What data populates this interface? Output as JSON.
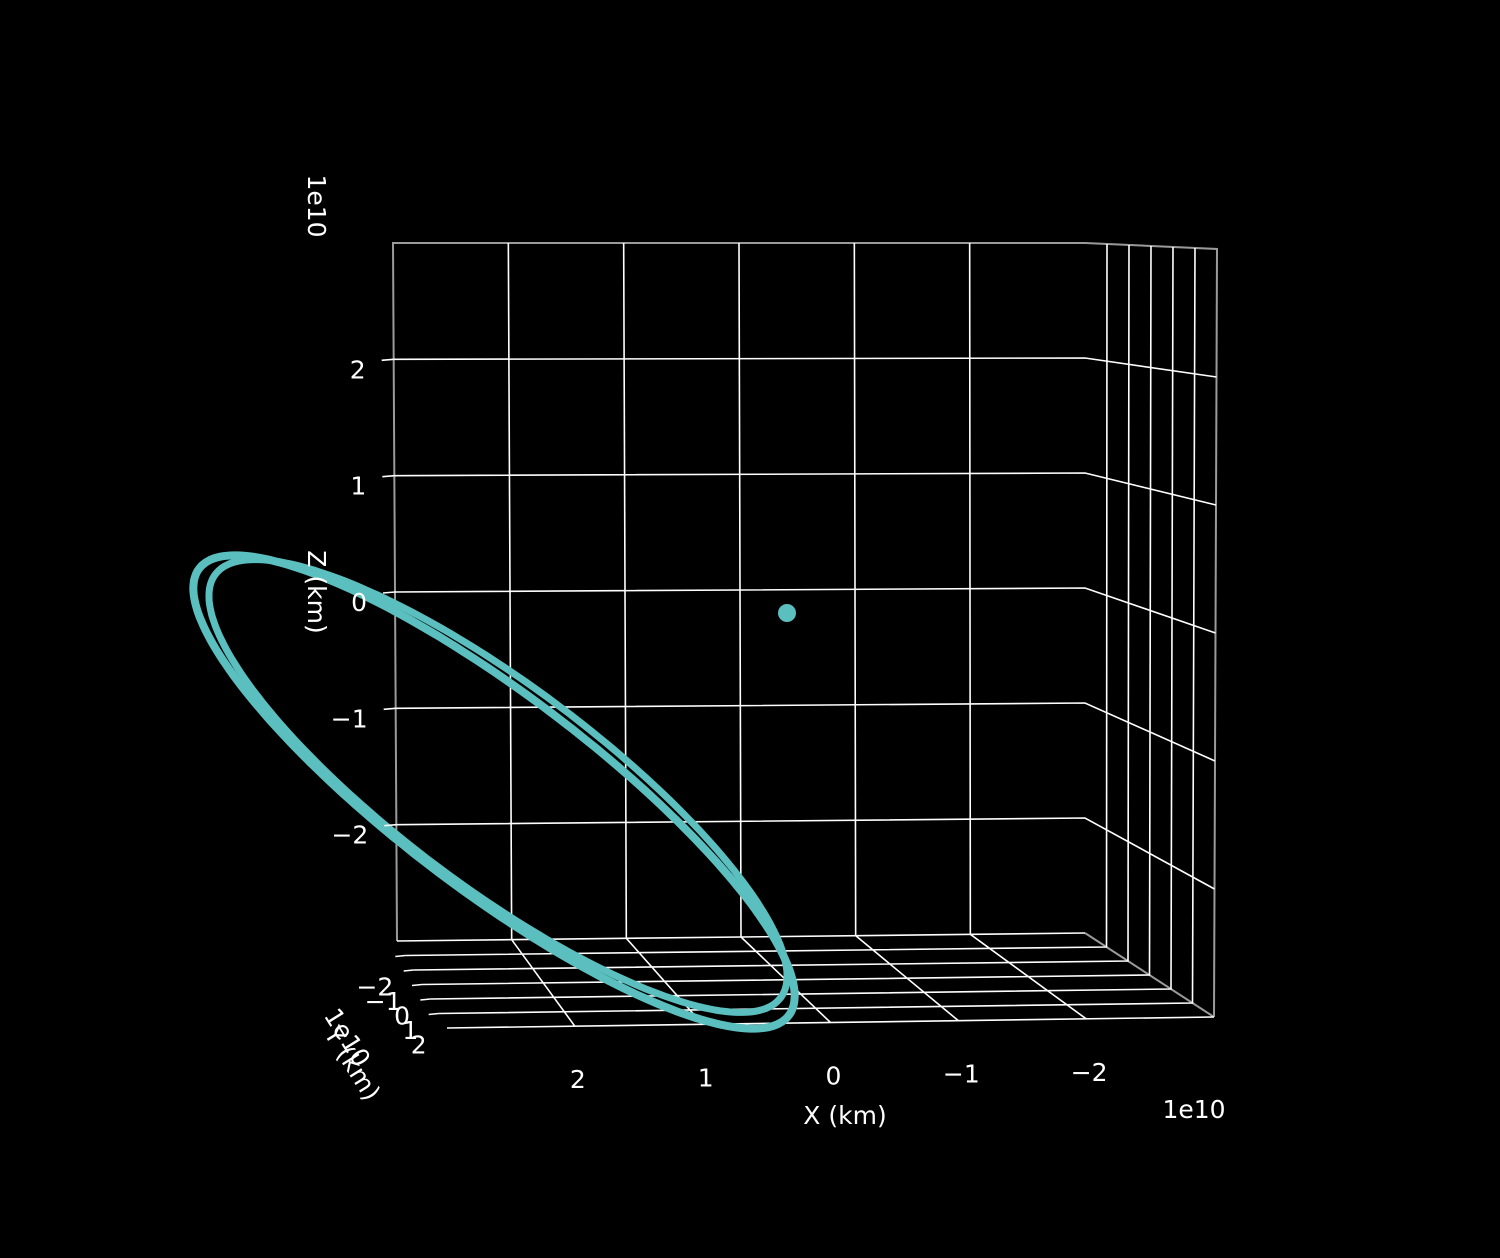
{
  "colors": {
    "background": "#000000",
    "grid": "#ffffff",
    "pane_edge": "#9a9a9a",
    "orbit": "#5bbfbf",
    "text": "#ffffff"
  },
  "chart_data": {
    "type": "line",
    "projection": "3d",
    "title": "",
    "xlabel": "X (km)",
    "ylabel": "Y (km)",
    "zlabel": "Z (km)",
    "offsets": {
      "x": "1e10",
      "y": "1e10",
      "z": "1e10"
    },
    "xlim": [
      -3,
      3
    ],
    "ylim": [
      -3,
      3
    ],
    "zlim": [
      -3,
      3
    ],
    "x_ticks": [
      "2",
      "1",
      "0",
      "−1",
      "−2"
    ],
    "y_ticks": [
      "−2",
      "−1",
      "0",
      "1",
      "2"
    ],
    "z_ticks": [
      "2",
      "1",
      "0",
      "−1",
      "−2"
    ],
    "grid": true,
    "legend": "none",
    "series": [
      {
        "kind": "orbit",
        "description_points_x": [
          -0.4,
          0.25,
          1.2,
          2.2,
          3.2,
          4.2,
          3.9,
          2.8,
          1.7,
          0.8,
          -0.4
        ],
        "description_points_y": [
          0.0,
          0.0,
          0.4,
          0.9,
          1.3,
          1.7,
          1.6,
          1.0,
          0.4,
          -0.1,
          0.0
        ],
        "description_points_z": [
          0.0,
          0.05,
          -0.9,
          -1.9,
          -2.9,
          -3.3,
          -3.35,
          -2.6,
          -1.6,
          -0.7,
          0.0
        ],
        "marker_at": [
          -0.4,
          0.0,
          0.0
        ]
      }
    ]
  }
}
